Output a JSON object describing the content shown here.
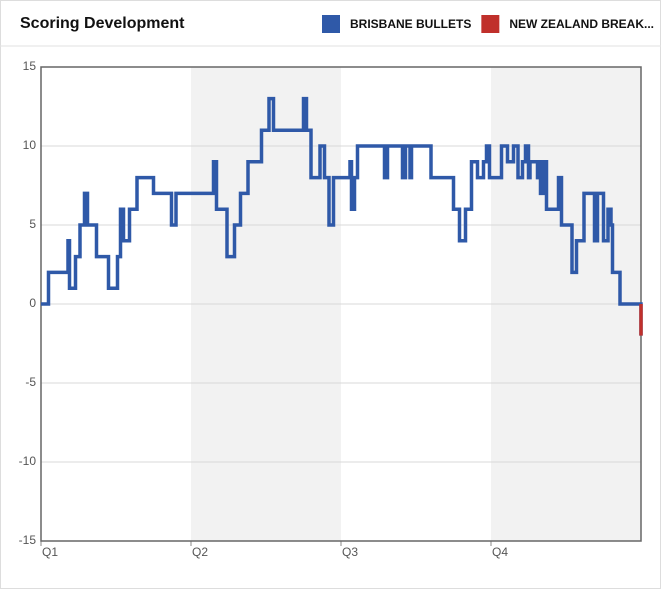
{
  "chart_data": {
    "type": "step-line",
    "title": "Scoring Development",
    "legend": [
      {
        "name": "BRISBANE BULLETS",
        "color": "#2f59a8"
      },
      {
        "name": "NEW ZEALAND BREAK...",
        "color": "#c0302b"
      }
    ],
    "x": [
      0,
      0.5,
      1.8,
      1.9,
      2.3,
      2.6,
      2.9,
      3.1,
      3.7,
      4.5,
      5.1,
      5.3,
      5.5,
      5.9,
      6.4,
      7.5,
      8.7,
      9.0,
      11.5,
      11.7,
      12.4,
      12.9,
      13.3,
      13.8,
      14.7,
      15.2,
      15.5,
      17.5,
      17.7,
      18.0,
      18.6,
      18.9,
      19.2,
      19.5,
      20.6,
      20.7,
      20.9,
      21.1,
      22.9,
      23.1,
      24.1,
      24.3,
      24.6,
      24.7,
      26.0,
      27.5,
      27.9,
      28.3,
      28.7,
      29.1,
      29.5,
      29.7,
      29.9,
      30.7,
      31.1,
      31.5,
      31.8,
      32.1,
      32.3,
      32.5,
      32.6,
      33.1,
      33.2,
      33.3,
      33.5,
      33.7,
      34.5,
      34.7,
      35.4,
      35.7,
      36.2,
      36.9,
      37.1,
      37.5,
      37.8,
      38.0,
      38.1,
      38.6,
      40
    ],
    "values": [
      0,
      2,
      4,
      1,
      3,
      5,
      7,
      5,
      3,
      1,
      3,
      6,
      4,
      6,
      8,
      7,
      5,
      7,
      9,
      6,
      3,
      5,
      7,
      9,
      11,
      13,
      11,
      13,
      11,
      8,
      10,
      8,
      5,
      8,
      9,
      6,
      8,
      10,
      8,
      10,
      8,
      10,
      8,
      10,
      8,
      6,
      4,
      6,
      9,
      8,
      9,
      10,
      8,
      10,
      9,
      10,
      8,
      9,
      10,
      8,
      9,
      8,
      9,
      7,
      9,
      6,
      8,
      5,
      2,
      4,
      7,
      4,
      7,
      4,
      6,
      5,
      2,
      0,
      -2
    ],
    "xlim": [
      0,
      40
    ],
    "xticks": [
      {
        "value": 0,
        "label": "Q1"
      },
      {
        "value": 10,
        "label": "Q2"
      },
      {
        "value": 20,
        "label": "Q3"
      },
      {
        "value": 30,
        "label": "Q4"
      }
    ],
    "ylim": [
      -15,
      15
    ],
    "yticks": [
      -15,
      -10,
      -5,
      0,
      5,
      10,
      15
    ],
    "grid": true
  }
}
